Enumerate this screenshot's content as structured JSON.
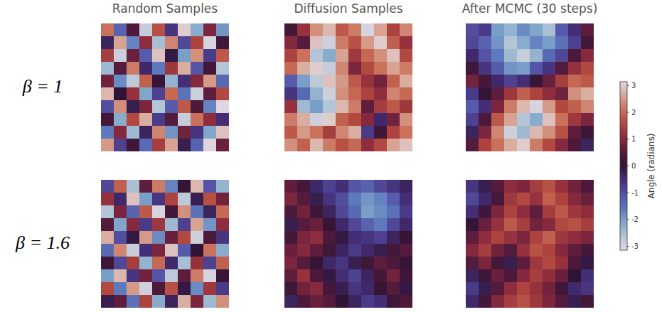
{
  "chart_data": {
    "type": "heatmap",
    "tick_labels": false,
    "columns": [
      "Random Samples",
      "Diffusion Samples",
      "After MCMC (30 steps)"
    ],
    "rows": [
      "β = 1",
      "β = 1.6"
    ],
    "colorbar": {
      "label": "Angle (radians)",
      "range": [
        -3.14159,
        3.14159
      ],
      "ticks": [
        -3,
        -2,
        -1,
        0,
        1,
        2,
        3
      ]
    },
    "panels": [
      [
        [
          [
            2.1,
            -1.3,
            0.4,
            -2.8,
            1.7,
            -0.6,
            3.0,
            -2.2,
            0.9,
            -1.9
          ],
          [
            -0.3,
            2.6,
            -1.7,
            1.1,
            -2.5,
            2.3,
            -0.9,
            1.5,
            -3.0,
            0.2
          ],
          [
            1.4,
            -2.9,
            0.7,
            -1.2,
            2.9,
            -0.1,
            -2.0,
            2.4,
            -0.7,
            1.8
          ],
          [
            -2.4,
            0.5,
            2.2,
            -0.4,
            -1.6,
            1.3,
            2.7,
            -1.1,
            0.3,
            -2.6
          ],
          [
            0.8,
            -1.8,
            -2.7,
            1.9,
            0.1,
            -2.3,
            -0.5,
            1.0,
            2.5,
            -1.4
          ],
          [
            2.8,
            0.0,
            1.2,
            -2.1,
            -0.8,
            2.0,
            -1.5,
            -2.9,
            0.6,
            1.6
          ],
          [
            -1.0,
            2.4,
            -0.2,
            0.9,
            -2.6,
            -1.2,
            1.8,
            0.4,
            -1.7,
            -3.1
          ],
          [
            0.3,
            -2.2,
            1.6,
            2.7,
            -0.7,
            0.5,
            -2.8,
            2.1,
            1.1,
            -0.5
          ],
          [
            -1.6,
            1.0,
            -2.4,
            -0.3,
            2.3,
            -1.9,
            0.8,
            -0.6,
            -2.1,
            2.9
          ],
          [
            2.5,
            -0.8,
            0.2,
            -1.4,
            1.4,
            2.6,
            -0.2,
            -1.3,
            3.1,
            0.7
          ]
        ],
        [
          [
            0.3,
            1.2,
            2.4,
            2.8,
            1.8,
            2.2,
            -3.0,
            2.6,
            1.5,
            2.3
          ],
          [
            1.0,
            0.5,
            2.9,
            -2.9,
            2.2,
            1.7,
            2.5,
            3.0,
            1.9,
            1.2
          ],
          [
            1.5,
            2.1,
            -2.6,
            -2.2,
            2.6,
            1.3,
            2.0,
            2.4,
            2.9,
            1.6
          ],
          [
            2.0,
            2.7,
            3.0,
            -2.8,
            2.3,
            0.9,
            1.6,
            2.1,
            2.6,
            2.2
          ],
          [
            -1.2,
            -2.0,
            -2.7,
            2.9,
            2.5,
            1.8,
            1.2,
            0.8,
            1.9,
            2.7
          ],
          [
            -0.6,
            -1.4,
            -2.3,
            -2.9,
            2.4,
            2.0,
            1.5,
            1.1,
            2.3,
            2.0
          ],
          [
            1.2,
            -2.4,
            -2.0,
            -2.6,
            2.8,
            2.2,
            0.6,
            1.4,
            1.8,
            1.3
          ],
          [
            2.2,
            2.7,
            -2.9,
            3.0,
            1.9,
            1.6,
            1.0,
            -0.4,
            0.8,
            2.4
          ],
          [
            1.8,
            2.5,
            2.1,
            1.4,
            2.3,
            2.7,
            -0.7,
            0.2,
            1.5,
            2.1
          ],
          [
            2.4,
            1.9,
            2.8,
            2.2,
            1.7,
            2.0,
            1.1,
            1.6,
            2.6,
            2.9
          ]
        ],
        [
          [
            -1.0,
            -0.7,
            -2.0,
            -2.3,
            -1.8,
            -2.1,
            -2.5,
            -1.2,
            -0.5,
            0.6
          ],
          [
            -0.9,
            -1.3,
            -1.9,
            -2.6,
            -2.2,
            -1.7,
            -2.0,
            -1.5,
            -0.8,
            0.3
          ],
          [
            -0.4,
            -1.1,
            -1.6,
            -2.4,
            -2.8,
            -2.3,
            -1.4,
            -0.9,
            0.4,
            1.0
          ],
          [
            0.2,
            -0.6,
            -1.2,
            -1.9,
            -2.0,
            -1.1,
            -0.6,
            0.5,
            1.2,
            1.6
          ],
          [
            0.8,
            0.3,
            -0.4,
            -0.8,
            -0.5,
            0.1,
            0.7,
            1.4,
            2.0,
            1.8
          ],
          [
            -0.7,
            0.1,
            0.6,
            1.3,
            1.9,
            1.5,
            1.1,
            0.8,
            2.4,
            2.7
          ],
          [
            -1.2,
            -0.5,
            0.9,
            2.2,
            2.8,
            -3.0,
            2.5,
            1.6,
            1.9,
            2.3
          ],
          [
            -0.8,
            0.4,
            1.8,
            2.6,
            -2.6,
            -2.2,
            2.9,
            2.1,
            1.3,
            0.9
          ],
          [
            -0.3,
            0.9,
            2.3,
            -2.9,
            -2.4,
            2.8,
            2.4,
            1.7,
            0.6,
            0.2
          ],
          [
            0.5,
            1.5,
            2.1,
            2.7,
            3.0,
            2.2,
            1.6,
            1.0,
            0.4,
            -0.3
          ]
        ]
      ],
      [
        [
          [
            -0.9,
            1.9,
            -2.5,
            0.6,
            2.2,
            -1.7,
            0.1,
            2.8,
            -1.1,
            -2.3
          ],
          [
            1.2,
            -0.4,
            2.9,
            -2.0,
            -0.6,
            1.5,
            -2.7,
            -0.2,
            1.7,
            0.8
          ],
          [
            -2.6,
            0.9,
            -1.3,
            1.8,
            -3.0,
            0.3,
            2.4,
            -1.5,
            -0.3,
            2.0
          ],
          [
            0.5,
            -2.1,
            1.0,
            -0.7,
            1.3,
            -2.4,
            -0.8,
            2.6,
            -1.9,
            1.1
          ],
          [
            2.7,
            -1.0,
            -0.1,
            2.5,
            -1.8,
            0.7,
            1.6,
            -2.9,
            0.4,
            -0.6
          ],
          [
            -1.4,
            2.3,
            -2.8,
            -0.5,
            0.9,
            2.9,
            -1.2,
            0.0,
            2.1,
            -2.2
          ],
          [
            0.2,
            -0.9,
            1.4,
            -2.3,
            2.0,
            -0.4,
            -2.5,
            1.2,
            -0.8,
            1.9
          ],
          [
            -2.0,
            2.8,
            -0.6,
            0.8,
            -1.1,
            -2.7,
            0.6,
            2.2,
            -3.0,
            0.1
          ],
          [
            1.6,
            -1.6,
            2.5,
            -2.9,
            0.4,
            1.7,
            -0.1,
            -1.8,
            1.3,
            -0.7
          ],
          [
            -0.2,
            0.6,
            -1.5,
            1.5,
            -2.2,
            -0.3,
            2.7,
            0.9,
            -2.4,
            2.4
          ]
        ],
        [
          [
            0.6,
            0.3,
            -0.4,
            -0.8,
            -0.5,
            -1.1,
            -1.3,
            -0.9,
            -0.6,
            -0.3
          ],
          [
            0.9,
            0.5,
            -0.2,
            -0.6,
            -1.0,
            -1.6,
            -1.9,
            -1.7,
            -1.2,
            -0.5
          ],
          [
            0.4,
            0.8,
            0.2,
            -0.3,
            -0.9,
            -1.4,
            -2.0,
            -1.8,
            -1.5,
            -0.7
          ],
          [
            -0.2,
            0.5,
            0.7,
            0.1,
            -0.4,
            -0.9,
            -1.3,
            -1.6,
            -0.9,
            -0.4
          ],
          [
            0.3,
            0.9,
            1.1,
            0.4,
            -0.1,
            -0.5,
            -0.6,
            -0.8,
            -0.3,
            0.1
          ],
          [
            0.7,
            1.0,
            0.6,
            0.2,
            -0.3,
            -0.7,
            -0.4,
            -0.2,
            0.3,
            0.5
          ],
          [
            0.9,
            0.5,
            0.1,
            -0.4,
            -0.6,
            -0.2,
            0.2,
            0.6,
            0.4,
            0.1
          ],
          [
            0.6,
            1.2,
            0.4,
            -0.1,
            -0.5,
            -0.8,
            -0.3,
            0.3,
            0.8,
            0.2
          ],
          [
            0.2,
            0.8,
            1.0,
            0.3,
            -0.2,
            -0.6,
            -0.4,
            0.1,
            0.5,
            -0.1
          ],
          [
            -0.3,
            0.4,
            0.7,
            0.5,
            0.0,
            -0.3,
            -0.7,
            -0.5,
            0.2,
            0.4
          ]
        ],
        [
          [
            -0.6,
            -0.2,
            0.5,
            1.1,
            0.9,
            1.4,
            1.7,
            1.2,
            0.8,
            0.4
          ],
          [
            -0.9,
            -0.4,
            0.3,
            1.3,
            1.6,
            1.2,
            1.9,
            1.5,
            1.0,
            0.7
          ],
          [
            -0.5,
            0.2,
            0.9,
            1.5,
            1.1,
            0.6,
            1.4,
            1.8,
            1.3,
            1.1
          ],
          [
            0.1,
            0.7,
            1.2,
            1.8,
            1.4,
            0.8,
            1.0,
            1.6,
            1.7,
            1.4
          ],
          [
            0.6,
            1.1,
            1.5,
            1.2,
            0.9,
            1.5,
            1.9,
            1.3,
            1.1,
            0.9
          ],
          [
            1.0,
            1.4,
            0.8,
            0.5,
            1.2,
            1.7,
            1.5,
            1.0,
            0.6,
            0.3
          ],
          [
            0.5,
            0.9,
            0.3,
            -0.2,
            0.6,
            1.3,
            1.6,
            1.2,
            0.4,
            -0.1
          ],
          [
            -0.3,
            0.2,
            0.7,
            0.4,
            1.0,
            1.4,
            1.1,
            0.7,
            0.0,
            -0.5
          ],
          [
            -0.7,
            -0.2,
            0.5,
            1.1,
            1.5,
            1.2,
            0.8,
            0.2,
            -0.4,
            -0.6
          ],
          [
            -0.4,
            0.3,
            1.0,
            1.4,
            1.7,
            1.3,
            0.9,
            0.5,
            -0.2,
            0.3
          ]
        ]
      ]
    ]
  }
}
